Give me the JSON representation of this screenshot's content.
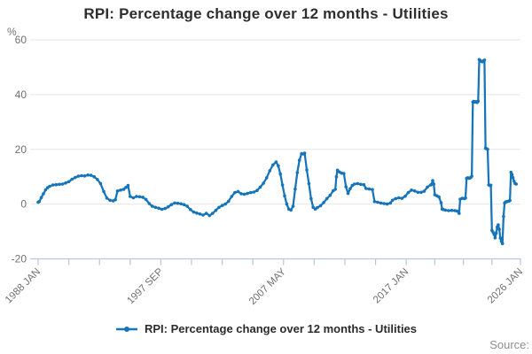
{
  "header": {
    "title": "RPI: Percentage change over 12 months - Utilities"
  },
  "legend": {
    "label": "RPI: Percentage change over 12 months - Utilities"
  },
  "footer": {
    "source_label": "Source:"
  },
  "colors": {
    "line": "#1574ba",
    "grid": "#e6e6e6",
    "axis": "#b4c7dd",
    "tick_text": "#707070",
    "title_text": "#2e2e2e",
    "source_text": "#8f8f8f"
  },
  "chart_data": {
    "type": "line",
    "title": "RPI: Percentage change over 12 months - Utilities",
    "y_unit": "%",
    "ylim": [
      -20,
      60
    ],
    "y_ticks": [
      60,
      40,
      20,
      0,
      -20
    ],
    "x_tick_labels": [
      "1988 JAN",
      "1997 SEP",
      "2007 MAY",
      "2017 JAN",
      "2026 JAN"
    ],
    "x_tick_months": [
      0,
      116,
      232,
      348,
      456
    ],
    "x_minor_ticks_between_labels": 3,
    "x_range_months": 456,
    "grid": "horizontal-only",
    "legend_position": "bottom-center",
    "series": [
      {
        "name": "RPI: Percentage change over 12 months - Utilities",
        "points": [
          [
            "1988-01",
            0.7
          ],
          [
            "1988-02",
            0.9
          ],
          [
            "1988-04",
            2.4
          ],
          [
            "1988-06",
            3.8
          ],
          [
            "1988-08",
            5.2
          ],
          [
            "1988-10",
            6.0
          ],
          [
            "1988-12",
            6.5
          ],
          [
            "1989-03",
            7.0
          ],
          [
            "1989-06",
            7.1
          ],
          [
            "1989-09",
            7.2
          ],
          [
            "1989-12",
            7.3
          ],
          [
            "1990-03",
            7.7
          ],
          [
            "1990-06",
            8.2
          ],
          [
            "1990-09",
            9.1
          ],
          [
            "1990-12",
            9.7
          ],
          [
            "1991-03",
            10.2
          ],
          [
            "1991-06",
            10.4
          ],
          [
            "1991-09",
            10.3
          ],
          [
            "1991-12",
            10.6
          ],
          [
            "1992-03",
            10.5
          ],
          [
            "1992-06",
            10.0
          ],
          [
            "1992-09",
            9.0
          ],
          [
            "1992-12",
            7.5
          ],
          [
            "1993-03",
            4.6
          ],
          [
            "1993-06",
            2.2
          ],
          [
            "1993-09",
            1.4
          ],
          [
            "1993-12",
            1.2
          ],
          [
            "1994-02",
            1.6
          ],
          [
            "1994-04",
            4.8
          ],
          [
            "1994-07",
            5.1
          ],
          [
            "1994-10",
            5.4
          ],
          [
            "1994-12",
            6.1
          ],
          [
            "1995-02",
            6.8
          ],
          [
            "1995-04",
            2.8
          ],
          [
            "1995-07",
            2.3
          ],
          [
            "1995-10",
            2.8
          ],
          [
            "1996-01",
            2.7
          ],
          [
            "1996-04",
            2.5
          ],
          [
            "1996-07",
            1.7
          ],
          [
            "1996-10",
            0.2
          ],
          [
            "1997-01",
            -0.8
          ],
          [
            "1997-04",
            -1.2
          ],
          [
            "1997-07",
            -1.5
          ],
          [
            "1997-10",
            -1.9
          ],
          [
            "1998-01",
            -1.6
          ],
          [
            "1998-04",
            -1.0
          ],
          [
            "1998-07",
            -0.2
          ],
          [
            "1998-10",
            0.4
          ],
          [
            "1999-01",
            0.3
          ],
          [
            "1999-04",
            0.1
          ],
          [
            "1999-07",
            -0.2
          ],
          [
            "1999-10",
            -0.8
          ],
          [
            "2000-01",
            -2.0
          ],
          [
            "2000-04",
            -2.9
          ],
          [
            "2000-07",
            -3.3
          ],
          [
            "2000-10",
            -3.6
          ],
          [
            "2001-01",
            -4.0
          ],
          [
            "2001-04",
            -3.4
          ],
          [
            "2001-07",
            -4.2
          ],
          [
            "2001-10",
            -3.4
          ],
          [
            "2002-01",
            -2.3
          ],
          [
            "2002-04",
            -1.2
          ],
          [
            "2002-07",
            -0.5
          ],
          [
            "2002-10",
            0.0
          ],
          [
            "2003-01",
            1.0
          ],
          [
            "2003-04",
            2.8
          ],
          [
            "2003-07",
            4.2
          ],
          [
            "2003-10",
            4.6
          ],
          [
            "2004-01",
            3.8
          ],
          [
            "2004-04",
            3.6
          ],
          [
            "2004-07",
            3.9
          ],
          [
            "2004-10",
            4.2
          ],
          [
            "2005-01",
            4.4
          ],
          [
            "2005-04",
            5.0
          ],
          [
            "2005-07",
            6.2
          ],
          [
            "2005-10",
            7.6
          ],
          [
            "2006-01",
            9.6
          ],
          [
            "2006-04",
            12.2
          ],
          [
            "2006-07",
            14.3
          ],
          [
            "2006-10",
            15.4
          ],
          [
            "2006-12",
            14.0
          ],
          [
            "2007-02",
            11.0
          ],
          [
            "2007-04",
            7.0
          ],
          [
            "2007-06",
            3.0
          ],
          [
            "2007-08",
            0.0
          ],
          [
            "2007-10",
            -1.8
          ],
          [
            "2007-12",
            -2.2
          ],
          [
            "2008-02",
            -0.8
          ],
          [
            "2008-04",
            5.5
          ],
          [
            "2008-06",
            11.5
          ],
          [
            "2008-08",
            16.0
          ],
          [
            "2008-10",
            18.4
          ],
          [
            "2008-12",
            18.3
          ],
          [
            "2009-01",
            18.6
          ],
          [
            "2009-03",
            12.5
          ],
          [
            "2009-05",
            7.5
          ],
          [
            "2009-07",
            2.0
          ],
          [
            "2009-09",
            -1.2
          ],
          [
            "2009-11",
            -1.8
          ],
          [
            "2010-01",
            -1.3
          ],
          [
            "2010-04",
            -0.6
          ],
          [
            "2010-07",
            0.6
          ],
          [
            "2010-10",
            2.0
          ],
          [
            "2011-01",
            3.2
          ],
          [
            "2011-04",
            4.9
          ],
          [
            "2011-06",
            5.4
          ],
          [
            "2011-07",
            10.0
          ],
          [
            "2011-08",
            12.4
          ],
          [
            "2011-10",
            11.7
          ],
          [
            "2011-12",
            11.3
          ],
          [
            "2012-02",
            11.2
          ],
          [
            "2012-04",
            6.3
          ],
          [
            "2012-06",
            3.9
          ],
          [
            "2012-08",
            5.6
          ],
          [
            "2012-10",
            6.8
          ],
          [
            "2012-12",
            7.3
          ],
          [
            "2013-03",
            7.5
          ],
          [
            "2013-06",
            7.2
          ],
          [
            "2013-09",
            7.1
          ],
          [
            "2013-11",
            5.7
          ],
          [
            "2014-02",
            5.5
          ],
          [
            "2014-05",
            5.3
          ],
          [
            "2014-07",
            0.9
          ],
          [
            "2014-10",
            0.7
          ],
          [
            "2015-01",
            0.4
          ],
          [
            "2015-04",
            0.2
          ],
          [
            "2015-07",
            0.0
          ],
          [
            "2015-10",
            0.4
          ],
          [
            "2015-12",
            1.4
          ],
          [
            "2016-03",
            2.0
          ],
          [
            "2016-06",
            2.3
          ],
          [
            "2016-09",
            2.1
          ],
          [
            "2016-12",
            2.9
          ],
          [
            "2017-03",
            4.2
          ],
          [
            "2017-06",
            5.1
          ],
          [
            "2017-09",
            4.8
          ],
          [
            "2017-12",
            4.3
          ],
          [
            "2018-03",
            4.3
          ],
          [
            "2018-06",
            4.7
          ],
          [
            "2018-09",
            6.2
          ],
          [
            "2018-12",
            7.0
          ],
          [
            "2019-01",
            7.2
          ],
          [
            "2019-02",
            8.6
          ],
          [
            "2019-03",
            7.3
          ],
          [
            "2019-04",
            3.4
          ],
          [
            "2019-06",
            3.0
          ],
          [
            "2019-08",
            2.6
          ],
          [
            "2019-10",
            0.5
          ],
          [
            "2019-11",
            -1.8
          ],
          [
            "2019-12",
            -2.0
          ],
          [
            "2020-02",
            -2.2
          ],
          [
            "2020-05",
            -2.4
          ],
          [
            "2020-08",
            -2.3
          ],
          [
            "2020-11",
            -2.4
          ],
          [
            "2021-01",
            -2.5
          ],
          [
            "2021-03",
            -3.4
          ],
          [
            "2021-04",
            1.8
          ],
          [
            "2021-06",
            2.1
          ],
          [
            "2021-08",
            2.0
          ],
          [
            "2021-09",
            2.2
          ],
          [
            "2021-10",
            9.4
          ],
          [
            "2021-11",
            9.6
          ],
          [
            "2021-12",
            9.4
          ],
          [
            "2022-01",
            9.5
          ],
          [
            "2022-02",
            9.7
          ],
          [
            "2022-03",
            10.2
          ],
          [
            "2022-04",
            37.3
          ],
          [
            "2022-05",
            37.5
          ],
          [
            "2022-06",
            37.2
          ],
          [
            "2022-07",
            37.4
          ],
          [
            "2022-08",
            37.1
          ],
          [
            "2022-09",
            37.6
          ],
          [
            "2022-10",
            52.8
          ],
          [
            "2022-11",
            52.4
          ],
          [
            "2022-12",
            52.1
          ],
          [
            "2023-01",
            52.0
          ],
          [
            "2023-02",
            52.3
          ],
          [
            "2023-03",
            52.6
          ],
          [
            "2023-04",
            20.4
          ],
          [
            "2023-05",
            20.2
          ],
          [
            "2023-06",
            20.0
          ],
          [
            "2023-07",
            7.0
          ],
          [
            "2023-08",
            6.8
          ],
          [
            "2023-09",
            6.9
          ],
          [
            "2023-10",
            -9.6
          ],
          [
            "2023-11",
            -10.2
          ],
          [
            "2023-12",
            -11.0
          ],
          [
            "2024-01",
            -12.3
          ],
          [
            "2024-02",
            -10.6
          ],
          [
            "2024-03",
            -8.4
          ],
          [
            "2024-04",
            -7.6
          ],
          [
            "2024-05",
            -9.2
          ],
          [
            "2024-06",
            -12.4
          ],
          [
            "2024-07",
            -13.6
          ],
          [
            "2024-08",
            -14.4
          ],
          [
            "2024-09",
            -4.5
          ],
          [
            "2024-10",
            0.4
          ],
          [
            "2024-11",
            0.8
          ],
          [
            "2024-12",
            0.9
          ],
          [
            "2025-01",
            1.0
          ],
          [
            "2025-02",
            1.1
          ],
          [
            "2025-03",
            1.3
          ],
          [
            "2025-04",
            11.6
          ],
          [
            "2025-05",
            10.8
          ],
          [
            "2025-06",
            9.6
          ],
          [
            "2025-07",
            8.3
          ],
          [
            "2025-08",
            7.5
          ],
          [
            "2025-09",
            7.3
          ]
        ]
      }
    ]
  }
}
